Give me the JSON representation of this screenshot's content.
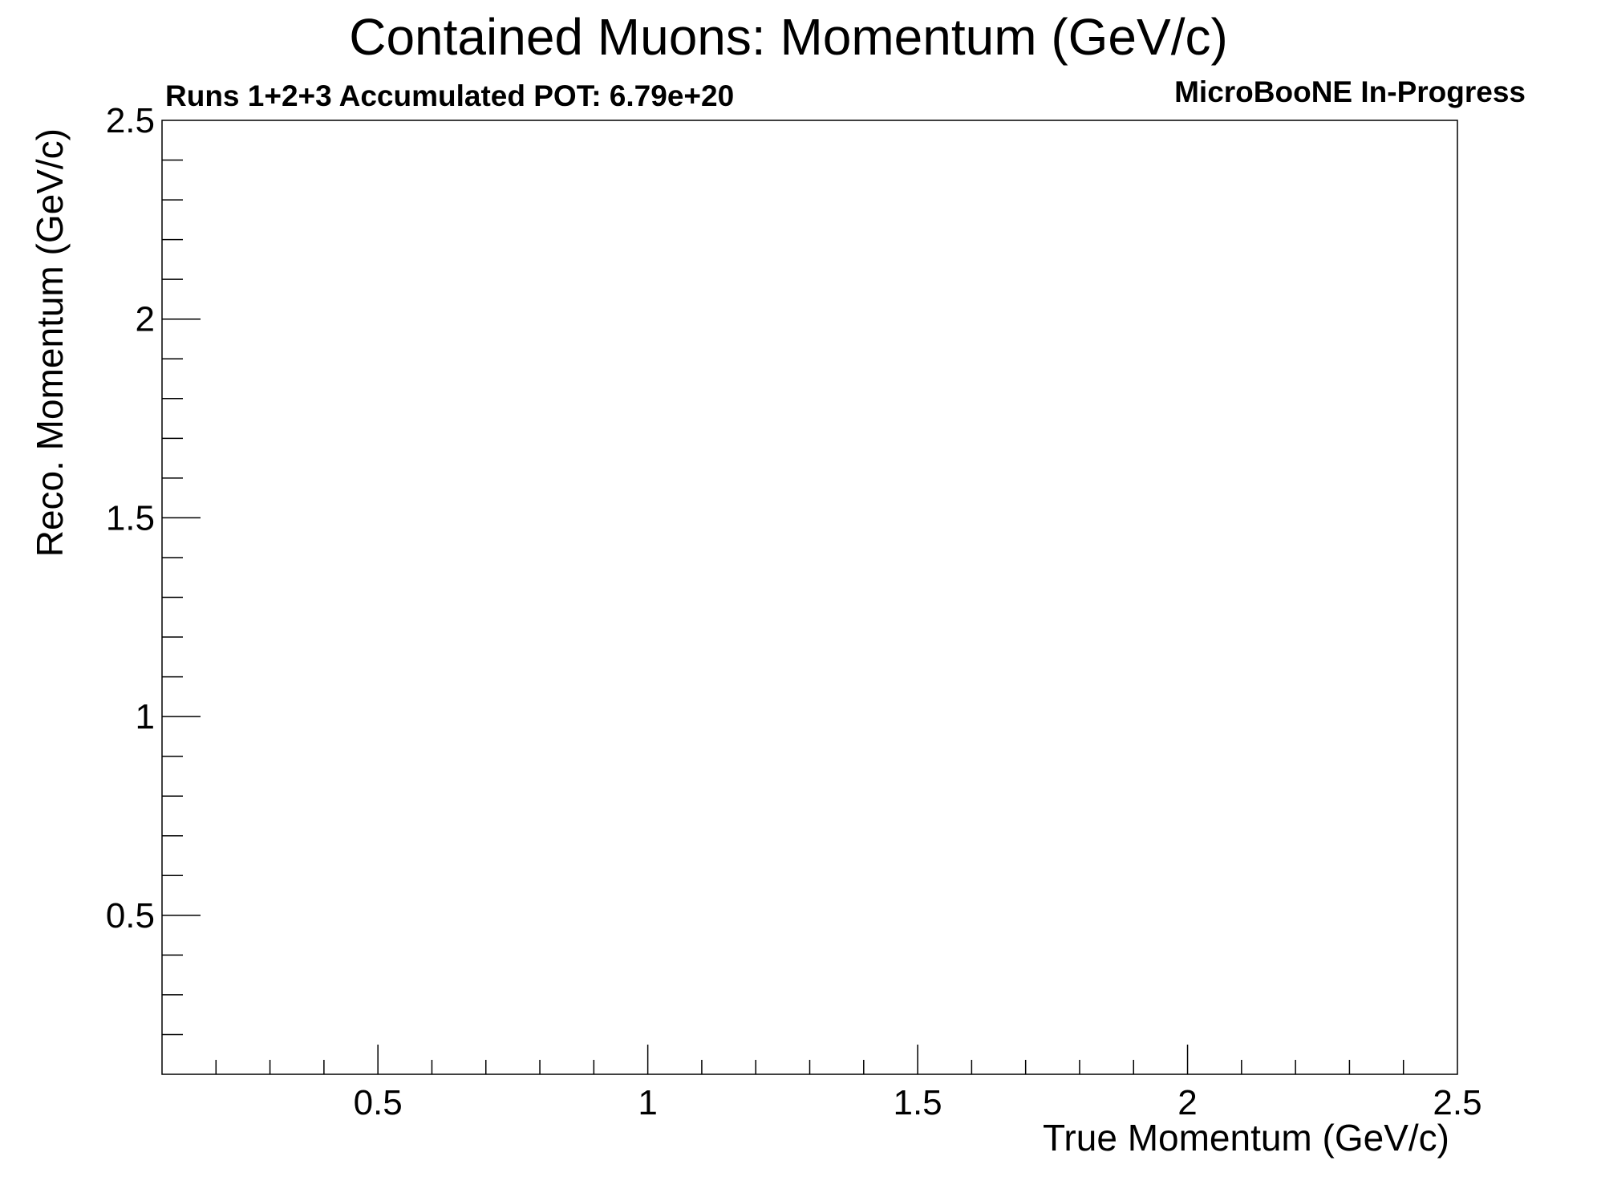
{
  "chart_data": {
    "type": "heatmap",
    "title": "Contained Muons: Momentum (GeV/c)",
    "subtitle": "Runs 1+2+3 Accumulated POT: 6.79e+20",
    "label": "MicroBooNE In-Progress",
    "xlabel": "True Momentum (GeV/c)",
    "ylabel": "Reco. Momentum (GeV/c)",
    "xlim": [
      0.1,
      2.5
    ],
    "ylim": [
      0.1,
      2.5
    ],
    "x_ticks": [
      0.5,
      1,
      1.5,
      2,
      2.5
    ],
    "x_tick_labels": [
      "0.5",
      "1",
      "1.5",
      "2",
      "2.5"
    ],
    "y_ticks": [
      0.5,
      1,
      1.5,
      2,
      2.5
    ],
    "y_tick_labels": [
      "0.5",
      "1",
      "1.5",
      "2",
      "2.5"
    ],
    "minor_tick_step": 0.1,
    "grid": false,
    "values": []
  }
}
